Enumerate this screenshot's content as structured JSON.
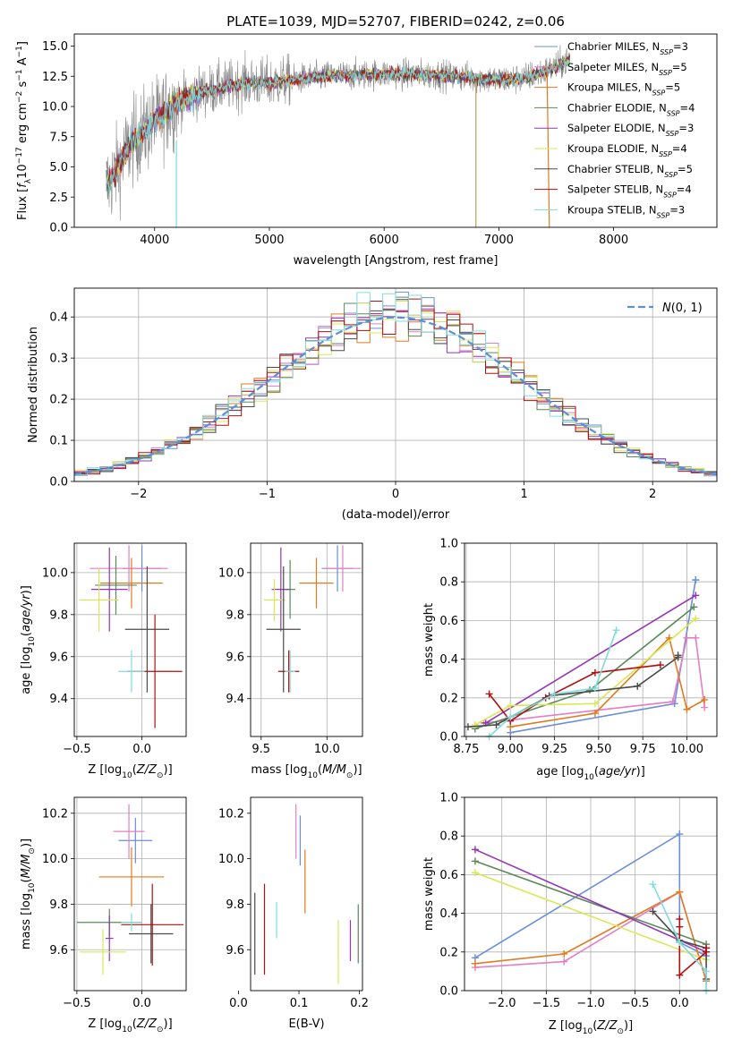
{
  "colors": {
    "c0": "#6a8fd8",
    "c1": "#e37fc2",
    "c2": "#e07b1f",
    "c3": "#5a8a5a",
    "c4": "#9535b5",
    "c5": "#d8e855",
    "c6": "#4a4a4a",
    "c7": "#b01010",
    "c8": "#80dcdc",
    "data": "#888888",
    "gauss": "#5b8fd8",
    "grid": "#b0b0b0"
  },
  "chart_data": [
    {
      "id": "spectrum",
      "type": "line",
      "title": "PLATE=1039, MJD=52707, FIBERID=0242, z=0.06",
      "xlabel": "wavelength [Angstrom, rest frame]",
      "ylabel": "Flux [f_λ 10^-17 erg cm^-2 s^-1 A^-1]",
      "xlim": [
        3300,
        8900
      ],
      "ylim": [
        0,
        16
      ],
      "xticks": [
        "4000",
        "5000",
        "6000",
        "7000",
        "8000"
      ],
      "yticks": [
        "0.0",
        "2.5",
        "5.0",
        "7.5",
        "10.0",
        "12.5",
        "15.0"
      ],
      "grid": false,
      "legend": "right",
      "series": [
        {
          "name": "Chabrier MILES, N_SSP=3"
        },
        {
          "name": "Salpeter MILES, N_SSP=5"
        },
        {
          "name": "Kroupa MILES, N_SSP=5"
        },
        {
          "name": "Chabrier ELODIE, N_SSP=4"
        },
        {
          "name": "Salpeter ELODIE, N_SSP=3"
        },
        {
          "name": "Kroupa ELODIE, N_SSP=4"
        },
        {
          "name": "Chabrier STELIB, N_SSP=5"
        },
        {
          "name": "Salpeter STELIB, N_SSP=4"
        },
        {
          "name": "Kroupa STELIB, N_SSP=3"
        }
      ],
      "continuum": {
        "x": [
          3600,
          3800,
          4000,
          4200,
          4400,
          4600,
          4800,
          5000,
          5200,
          5500,
          6000,
          6500,
          7000,
          7200,
          7400,
          7500,
          7600
        ],
        "y": [
          3.6,
          7.0,
          8.8,
          10.3,
          11.2,
          11.6,
          12.0,
          11.9,
          12.2,
          12.5,
          12.7,
          12.6,
          12.2,
          12.3,
          12.9,
          13.3,
          13.8
        ]
      }
    },
    {
      "id": "residuals",
      "type": "histogram",
      "xlabel": "(data-model)/error",
      "ylabel": "Normed distribution",
      "xlim": [
        -2.5,
        2.5
      ],
      "ylim": [
        0,
        0.47
      ],
      "xticks": [
        "−2",
        "−1",
        "0",
        "1",
        "2"
      ],
      "yticks": [
        "0.0",
        "0.1",
        "0.2",
        "0.3",
        "0.4"
      ],
      "grid": true,
      "legend": "top-right",
      "gaussian_label": "N(0,1)",
      "bin_width": 0.1
    },
    {
      "id": "z-age",
      "type": "scatter",
      "xlabel": "Z [log10(Z/Z_sun)]",
      "ylabel": "age [log10(age/yr)]",
      "xlim": [
        -0.52,
        0.34
      ],
      "ylim": [
        9.22,
        10.14
      ],
      "xticks": [
        "−0.5",
        "0.0"
      ],
      "yticks": [
        "9.4",
        "9.6",
        "9.8",
        "10.0"
      ],
      "grid": true,
      "points": [
        {
          "c": "c0",
          "x": 0.0,
          "xe": 0.15,
          "y": 10.02,
          "ye": 0.11
        },
        {
          "c": "c1",
          "x": -0.1,
          "xe": 0.3,
          "y": 10.02,
          "ye": 0.11
        },
        {
          "c": "c2",
          "x": -0.08,
          "xe": 0.24,
          "y": 9.95,
          "ye": 0.12
        },
        {
          "c": "c3",
          "x": -0.2,
          "xe": 0.16,
          "y": 9.94,
          "ye": 0.14
        },
        {
          "c": "c4",
          "x": -0.25,
          "xe": 0.14,
          "y": 9.92,
          "ye": 0.2
        },
        {
          "c": "c5",
          "x": -0.33,
          "xe": 0.15,
          "y": 9.87,
          "ye": 0.15
        },
        {
          "c": "c6",
          "x": 0.04,
          "xe": 0.17,
          "y": 9.73,
          "ye": 0.3
        },
        {
          "c": "c7",
          "x": 0.1,
          "xe": 0.21,
          "y": 9.53,
          "ye": 0.27
        },
        {
          "c": "c8",
          "x": -0.08,
          "xe": 0.1,
          "y": 9.53,
          "ye": 0.1
        }
      ]
    },
    {
      "id": "mass-age",
      "type": "scatter",
      "xlabel": "mass [log10(M/M_sun)]",
      "ylabel": "",
      "xlim": [
        9.42,
        10.27
      ],
      "ylim": [
        9.22,
        10.14
      ],
      "xticks": [
        "9.5",
        "10.0"
      ],
      "yticks": [
        "9.4",
        "9.6",
        "9.8",
        "10.0"
      ],
      "grid": true,
      "points": [
        {
          "c": "c0",
          "x": 10.08,
          "xe": 0.12,
          "y": 10.02,
          "ye": 0.11
        },
        {
          "c": "c1",
          "x": 10.12,
          "xe": 0.14,
          "y": 10.02,
          "ye": 0.11
        },
        {
          "c": "c2",
          "x": 9.92,
          "xe": 0.13,
          "y": 9.95,
          "ye": 0.12
        },
        {
          "c": "c3",
          "x": 9.72,
          "xe": 0.04,
          "y": 9.92,
          "ye": 0.14
        },
        {
          "c": "c4",
          "x": 9.65,
          "xe": 0.07,
          "y": 9.92,
          "ye": 0.2
        },
        {
          "c": "c5",
          "x": 9.6,
          "xe": 0.08,
          "y": 9.87,
          "ye": 0.1
        },
        {
          "c": "c6",
          "x": 9.67,
          "xe": 0.13,
          "y": 9.73,
          "ye": 0.3
        },
        {
          "c": "c7",
          "x": 9.71,
          "xe": 0.08,
          "y": 9.53,
          "ye": 0.1
        },
        {
          "c": "c8",
          "x": 9.72,
          "xe": 0.04,
          "y": 9.53,
          "ye": 0.1
        }
      ]
    },
    {
      "id": "age-weight",
      "type": "line",
      "xlabel": "age [log10(age/yr)]",
      "ylabel": "mass weight",
      "xlim": [
        8.74,
        10.17
      ],
      "ylim": [
        0,
        1
      ],
      "xticks": [
        "8.75",
        "9.00",
        "9.25",
        "9.50",
        "9.75",
        "10.00"
      ],
      "xtickvals": [
        8.75,
        9.0,
        9.25,
        9.5,
        9.75,
        10.0
      ],
      "yticks": [
        "0.0",
        "0.2",
        "0.4",
        "0.6",
        "0.8",
        "1.0"
      ],
      "grid": true,
      "series": [
        {
          "c": "c0",
          "x": [
            9.0,
            9.93,
            10.05,
            10.05
          ],
          "y": [
            0.02,
            0.17,
            0.81,
            0.81
          ]
        },
        {
          "c": "c1",
          "x": [
            8.85,
            9.92,
            10.0,
            10.05,
            10.1
          ],
          "y": [
            0.07,
            0.18,
            0.51,
            0.51,
            0.15
          ]
        },
        {
          "c": "c2",
          "x": [
            9.0,
            9.48,
            9.9,
            10.0,
            10.1
          ],
          "y": [
            0.05,
            0.12,
            0.51,
            0.14,
            0.19
          ]
        },
        {
          "c": "c3",
          "x": [
            8.8,
            9.45,
            10.04
          ],
          "y": [
            0.04,
            0.24,
            0.67
          ]
        },
        {
          "c": "c4",
          "x": [
            8.86,
            10.05
          ],
          "y": [
            0.07,
            0.73
          ]
        },
        {
          "c": "c5",
          "x": [
            8.8,
            9.0,
            9.48,
            10.05
          ],
          "y": [
            0.06,
            0.16,
            0.17,
            0.61
          ]
        },
        {
          "c": "c6",
          "x": [
            8.76,
            8.92,
            9.22,
            9.72,
            9.95,
            9.95
          ],
          "y": [
            0.05,
            0.06,
            0.21,
            0.26,
            0.41,
            0.42
          ]
        },
        {
          "c": "c7",
          "x": [
            8.88,
            9.0,
            9.2,
            9.48,
            9.85
          ],
          "y": [
            0.22,
            0.08,
            0.2,
            0.33,
            0.37
          ]
        },
        {
          "c": "c8",
          "x": [
            8.88,
            9.0,
            9.25,
            9.48,
            9.6
          ],
          "y": [
            0.0,
            0.1,
            0.22,
            0.25,
            0.55
          ]
        }
      ]
    },
    {
      "id": "z-mass",
      "type": "scatter",
      "xlabel": "Z [log10(Z/Z_sun)]",
      "ylabel": "mass [log10(M/M_sun)]",
      "xlim": [
        -0.52,
        0.34
      ],
      "ylim": [
        9.42,
        10.27
      ],
      "xticks": [
        "−0.5",
        "0.0"
      ],
      "yticks": [
        "9.6",
        "9.8",
        "10.0",
        "10.2"
      ],
      "grid": true,
      "points": [
        {
          "c": "c0",
          "x": -0.05,
          "xe": 0.13,
          "y": 10.08,
          "ye": 0.1
        },
        {
          "c": "c1",
          "x": -0.1,
          "xe": 0.12,
          "y": 10.12,
          "ye": 0.12
        },
        {
          "c": "c2",
          "x": -0.08,
          "xe": 0.25,
          "y": 9.92,
          "ye": 0.13
        },
        {
          "c": "c3",
          "x": -0.25,
          "xe": 0.25,
          "y": 9.72,
          "ye": 0.06
        },
        {
          "c": "c4",
          "x": -0.25,
          "xe": 0.03,
          "y": 9.65,
          "ye": 0.1
        },
        {
          "c": "c5",
          "x": -0.3,
          "xe": 0.18,
          "y": 9.59,
          "ye": 0.1
        },
        {
          "c": "c6",
          "x": 0.07,
          "xe": 0.17,
          "y": 9.67,
          "ye": 0.13
        },
        {
          "c": "c7",
          "x": 0.08,
          "xe": 0.24,
          "y": 9.71,
          "ye": 0.18
        },
        {
          "c": "c8",
          "x": -0.08,
          "xe": 0.08,
          "y": 9.72,
          "ye": 0.04
        }
      ]
    },
    {
      "id": "ebv-mass",
      "type": "scatter",
      "xlabel": "E(B-V)",
      "ylabel": "",
      "xlim": [
        0.02,
        0.205
      ],
      "ylim": [
        9.42,
        10.27
      ],
      "xticks": [
        "0.0",
        "0.1",
        "0.2"
      ],
      "xtickvals": [
        0.0,
        0.1,
        0.2
      ],
      "yticks": [
        "9.6",
        "9.8",
        "10.0",
        "10.2"
      ],
      "grid": false,
      "points": [
        {
          "c": "c0",
          "x": 0.102,
          "xe": 0,
          "y": 10.08,
          "ye": 0.11
        },
        {
          "c": "c1",
          "x": 0.095,
          "xe": 0,
          "y": 10.12,
          "ye": 0.12
        },
        {
          "c": "c2",
          "x": 0.11,
          "xe": 0,
          "y": 9.9,
          "ye": 0.14
        },
        {
          "c": "c3",
          "x": 0.198,
          "xe": 0,
          "y": 9.67,
          "ye": 0.13
        },
        {
          "c": "c4",
          "x": 0.185,
          "xe": 0,
          "y": 9.64,
          "ye": 0.09
        },
        {
          "c": "c5",
          "x": 0.165,
          "xe": 0,
          "y": 9.59,
          "ye": 0.14
        },
        {
          "c": "c6",
          "x": 0.027,
          "xe": 0,
          "y": 9.67,
          "ye": 0.18
        },
        {
          "c": "c7",
          "x": 0.043,
          "xe": 0,
          "y": 9.69,
          "ye": 0.2
        },
        {
          "c": "c8",
          "x": 0.063,
          "xe": 0,
          "y": 9.73,
          "ye": 0.08
        }
      ]
    },
    {
      "id": "z-weight",
      "type": "line",
      "xlabel": "Z [log10(Z/Z_sun)]",
      "ylabel": "mass weight",
      "xlim": [
        -2.42,
        0.42
      ],
      "ylim": [
        0,
        1
      ],
      "xticks": [
        "−2.0",
        "−1.5",
        "−1.0",
        "−0.5",
        "0.0"
      ],
      "xtickvals": [
        -2.0,
        -1.5,
        -1.0,
        -0.5,
        0.0
      ],
      "yticks": [
        "0.0",
        "0.2",
        "0.4",
        "0.6",
        "0.8",
        "1.0"
      ],
      "grid": true,
      "series": [
        {
          "c": "c0",
          "x": [
            -2.3,
            0.0,
            0.0,
            0.3
          ],
          "y": [
            0.17,
            0.81,
            0.25,
            0.18
          ]
        },
        {
          "c": "c1",
          "x": [
            -2.3,
            -1.3,
            0.0,
            0.3
          ],
          "y": [
            0.12,
            0.15,
            0.51,
            0.05
          ]
        },
        {
          "c": "c2",
          "x": [
            -2.3,
            -1.3,
            0.0,
            0.3
          ],
          "y": [
            0.14,
            0.19,
            0.51,
            0.05
          ]
        },
        {
          "c": "c3",
          "x": [
            -2.3,
            0.3
          ],
          "y": [
            0.67,
            0.24
          ]
        },
        {
          "c": "c4",
          "x": [
            -2.3,
            0.3
          ],
          "y": [
            0.73,
            0.2
          ]
        },
        {
          "c": "c5",
          "x": [
            -2.3,
            0.3
          ],
          "y": [
            0.61,
            0.16
          ]
        },
        {
          "c": "c6",
          "x": [
            -0.3,
            0.0,
            0.3,
            0.3
          ],
          "y": [
            0.41,
            0.26,
            0.22,
            0.06
          ]
        },
        {
          "c": "c7",
          "x": [
            0.0,
            0.0,
            0.0,
            0.3,
            0.3
          ],
          "y": [
            0.37,
            0.33,
            0.08,
            0.2,
            0.22
          ]
        },
        {
          "c": "c8",
          "x": [
            -0.3,
            0.0,
            0.3,
            0.3
          ],
          "y": [
            0.55,
            0.25,
            0.1,
            0.0
          ]
        }
      ]
    }
  ]
}
